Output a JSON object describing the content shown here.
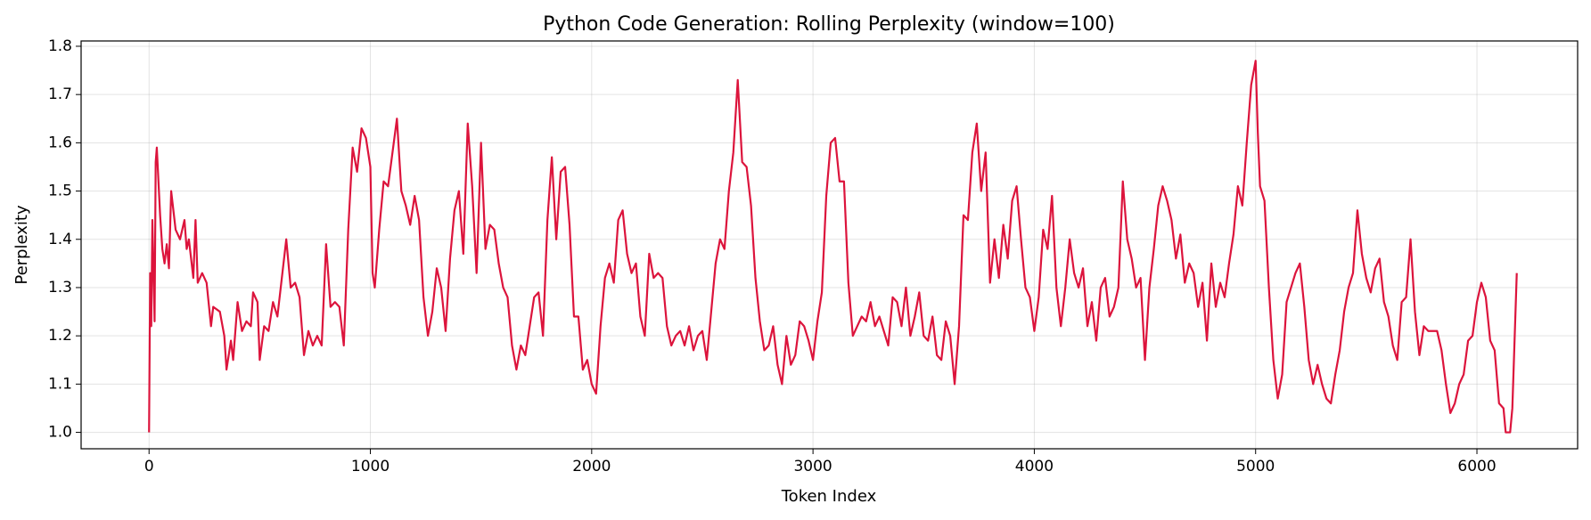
{
  "chart_data": {
    "type": "line",
    "title": "Python Code Generation: Rolling Perplexity (window=100)",
    "x_label": "Token Index",
    "y_label": "Perplexity",
    "xlim": [
      -307,
      6455
    ],
    "ylim": [
      0.966,
      1.811
    ],
    "xticks": [
      0,
      1000,
      2000,
      3000,
      4000,
      5000,
      6000
    ],
    "yticks": [
      {
        "value": 1,
        "label": "1.0"
      },
      1.1,
      1.2,
      1.3,
      1.4,
      1.5,
      1.6,
      1.7,
      1.8
    ],
    "grid": true,
    "color": "#dc143c",
    "x": [
      0,
      5,
      10,
      15,
      25,
      30,
      35,
      50,
      60,
      70,
      80,
      90,
      100,
      120,
      140,
      160,
      170,
      180,
      200,
      210,
      220,
      240,
      260,
      280,
      290,
      320,
      340,
      350,
      370,
      380,
      400,
      420,
      440,
      460,
      470,
      490,
      500,
      520,
      540,
      560,
      580,
      600,
      620,
      640,
      660,
      680,
      700,
      720,
      740,
      760,
      780,
      800,
      820,
      840,
      860,
      880,
      900,
      920,
      940,
      960,
      980,
      1000,
      1010,
      1020,
      1040,
      1060,
      1080,
      1100,
      1120,
      1140,
      1160,
      1180,
      1200,
      1220,
      1240,
      1260,
      1280,
      1300,
      1320,
      1340,
      1360,
      1380,
      1400,
      1420,
      1440,
      1460,
      1480,
      1500,
      1520,
      1540,
      1560,
      1580,
      1600,
      1620,
      1640,
      1660,
      1680,
      1700,
      1720,
      1740,
      1760,
      1780,
      1800,
      1820,
      1840,
      1860,
      1880,
      1900,
      1920,
      1940,
      1960,
      1980,
      2000,
      2020,
      2040,
      2060,
      2080,
      2100,
      2120,
      2140,
      2160,
      2180,
      2200,
      2220,
      2240,
      2260,
      2280,
      2300,
      2320,
      2340,
      2360,
      2380,
      2400,
      2420,
      2440,
      2460,
      2480,
      2500,
      2520,
      2540,
      2560,
      2580,
      2600,
      2620,
      2640,
      2660,
      2680,
      2700,
      2720,
      2740,
      2760,
      2780,
      2800,
      2820,
      2840,
      2860,
      2880,
      2900,
      2920,
      2940,
      2960,
      2980,
      3000,
      3020,
      3040,
      3060,
      3080,
      3100,
      3120,
      3140,
      3160,
      3180,
      3200,
      3220,
      3240,
      3260,
      3280,
      3300,
      3320,
      3340,
      3360,
      3380,
      3400,
      3420,
      3440,
      3460,
      3480,
      3500,
      3520,
      3540,
      3560,
      3580,
      3600,
      3620,
      3640,
      3660,
      3680,
      3700,
      3720,
      3740,
      3760,
      3780,
      3800,
      3820,
      3840,
      3860,
      3880,
      3900,
      3920,
      3940,
      3960,
      3980,
      4000,
      4020,
      4040,
      4060,
      4080,
      4100,
      4120,
      4140,
      4160,
      4180,
      4200,
      4220,
      4240,
      4260,
      4280,
      4300,
      4320,
      4340,
      4360,
      4380,
      4400,
      4420,
      4440,
      4460,
      4480,
      4500,
      4520,
      4540,
      4560,
      4580,
      4600,
      4620,
      4640,
      4660,
      4680,
      4700,
      4720,
      4740,
      4760,
      4780,
      4800,
      4820,
      4840,
      4860,
      4880,
      4900,
      4920,
      4940,
      4960,
      4980,
      5000,
      5010,
      5020,
      5040,
      5060,
      5080,
      5100,
      5120,
      5140,
      5160,
      5180,
      5200,
      5220,
      5240,
      5260,
      5280,
      5300,
      5320,
      5340,
      5360,
      5380,
      5400,
      5420,
      5440,
      5460,
      5480,
      5500,
      5520,
      5540,
      5560,
      5580,
      5600,
      5620,
      5640,
      5660,
      5680,
      5700,
      5720,
      5740,
      5760,
      5780,
      5800,
      5820,
      5840,
      5860,
      5880,
      5900,
      5920,
      5940,
      5960,
      5980,
      6000,
      6020,
      6040,
      6060,
      6080,
      6100,
      6120,
      6130,
      6150,
      6160,
      6180
    ],
    "values": [
      1.0,
      1.33,
      1.22,
      1.44,
      1.23,
      1.56,
      1.59,
      1.45,
      1.38,
      1.35,
      1.39,
      1.34,
      1.5,
      1.42,
      1.4,
      1.44,
      1.38,
      1.4,
      1.32,
      1.44,
      1.31,
      1.33,
      1.31,
      1.22,
      1.26,
      1.25,
      1.2,
      1.13,
      1.19,
      1.15,
      1.27,
      1.21,
      1.23,
      1.22,
      1.29,
      1.27,
      1.15,
      1.22,
      1.21,
      1.27,
      1.24,
      1.32,
      1.4,
      1.3,
      1.31,
      1.28,
      1.16,
      1.21,
      1.18,
      1.2,
      1.18,
      1.39,
      1.26,
      1.27,
      1.26,
      1.18,
      1.42,
      1.59,
      1.54,
      1.63,
      1.61,
      1.55,
      1.33,
      1.3,
      1.42,
      1.52,
      1.51,
      1.58,
      1.65,
      1.5,
      1.47,
      1.43,
      1.49,
      1.44,
      1.28,
      1.2,
      1.25,
      1.34,
      1.3,
      1.21,
      1.36,
      1.46,
      1.5,
      1.37,
      1.64,
      1.51,
      1.33,
      1.6,
      1.38,
      1.43,
      1.42,
      1.35,
      1.3,
      1.28,
      1.18,
      1.13,
      1.18,
      1.16,
      1.22,
      1.28,
      1.29,
      1.2,
      1.44,
      1.57,
      1.4,
      1.54,
      1.55,
      1.43,
      1.24,
      1.24,
      1.13,
      1.15,
      1.1,
      1.08,
      1.22,
      1.32,
      1.35,
      1.31,
      1.44,
      1.46,
      1.37,
      1.33,
      1.35,
      1.24,
      1.2,
      1.37,
      1.32,
      1.33,
      1.32,
      1.22,
      1.18,
      1.2,
      1.21,
      1.18,
      1.22,
      1.17,
      1.2,
      1.21,
      1.15,
      1.25,
      1.35,
      1.4,
      1.38,
      1.5,
      1.58,
      1.73,
      1.56,
      1.55,
      1.47,
      1.32,
      1.23,
      1.17,
      1.18,
      1.22,
      1.14,
      1.1,
      1.2,
      1.14,
      1.16,
      1.23,
      1.22,
      1.19,
      1.15,
      1.23,
      1.29,
      1.49,
      1.6,
      1.61,
      1.52,
      1.52,
      1.31,
      1.2,
      1.22,
      1.24,
      1.23,
      1.27,
      1.22,
      1.24,
      1.21,
      1.18,
      1.28,
      1.27,
      1.22,
      1.3,
      1.2,
      1.24,
      1.29,
      1.2,
      1.19,
      1.24,
      1.16,
      1.15,
      1.23,
      1.2,
      1.1,
      1.22,
      1.45,
      1.44,
      1.58,
      1.64,
      1.5,
      1.58,
      1.31,
      1.4,
      1.32,
      1.43,
      1.36,
      1.48,
      1.51,
      1.4,
      1.3,
      1.28,
      1.21,
      1.28,
      1.42,
      1.38,
      1.49,
      1.3,
      1.22,
      1.3,
      1.4,
      1.33,
      1.3,
      1.34,
      1.22,
      1.27,
      1.19,
      1.3,
      1.32,
      1.24,
      1.26,
      1.3,
      1.52,
      1.4,
      1.36,
      1.3,
      1.32,
      1.15,
      1.3,
      1.38,
      1.47,
      1.51,
      1.48,
      1.44,
      1.36,
      1.41,
      1.31,
      1.35,
      1.33,
      1.26,
      1.31,
      1.19,
      1.35,
      1.26,
      1.31,
      1.28,
      1.35,
      1.41,
      1.51,
      1.47,
      1.6,
      1.72,
      1.77,
      1.62,
      1.51,
      1.48,
      1.3,
      1.15,
      1.07,
      1.12,
      1.27,
      1.3,
      1.33,
      1.35,
      1.26,
      1.15,
      1.1,
      1.14,
      1.1,
      1.07,
      1.06,
      1.12,
      1.17,
      1.25,
      1.3,
      1.33,
      1.46,
      1.37,
      1.32,
      1.29,
      1.34,
      1.36,
      1.27,
      1.24,
      1.18,
      1.15,
      1.27,
      1.28,
      1.4,
      1.25,
      1.16,
      1.22,
      1.21,
      1.21,
      1.21,
      1.17,
      1.1,
      1.04,
      1.06,
      1.1,
      1.12,
      1.19,
      1.2,
      1.27,
      1.31,
      1.28,
      1.19,
      1.17,
      1.06,
      1.05,
      1.0,
      1.0,
      1.05,
      1.33
    ]
  }
}
